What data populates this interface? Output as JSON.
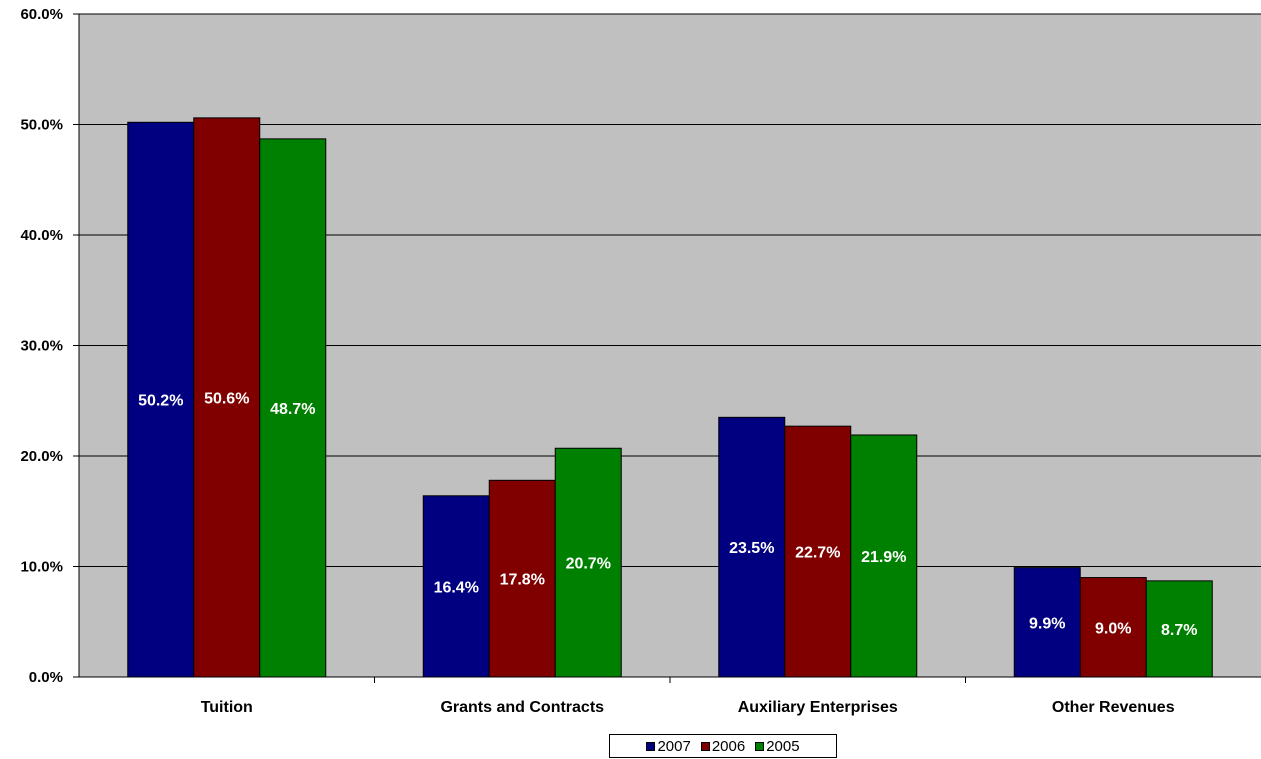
{
  "chart_data": {
    "type": "bar",
    "categories": [
      "Tuition",
      "Grants and Contracts",
      "Auxiliary Enterprises",
      "Other Revenues"
    ],
    "series": [
      {
        "name": "2007",
        "color": "#000080",
        "values": [
          50.2,
          16.4,
          23.5,
          9.9
        ],
        "labels": [
          "50.2%",
          "16.4%",
          "23.5%",
          "9.9%"
        ]
      },
      {
        "name": "2006",
        "color": "#800000",
        "values": [
          50.6,
          17.8,
          22.7,
          9.0
        ],
        "labels": [
          "50.6%",
          "17.8%",
          "22.7%",
          "9.0%"
        ]
      },
      {
        "name": "2005",
        "color": "#008000",
        "values": [
          48.7,
          20.7,
          21.9,
          8.7
        ],
        "labels": [
          "48.7%",
          "20.7%",
          "21.9%",
          "8.7%"
        ]
      }
    ],
    "ylim": [
      0,
      60
    ],
    "yticks": [
      0,
      10,
      20,
      30,
      40,
      50,
      60
    ],
    "ytick_labels": [
      "0.0%",
      "10.0%",
      "20.0%",
      "30.0%",
      "40.0%",
      "50.0%",
      "60.0%"
    ],
    "title": "",
    "xlabel": "",
    "ylabel": "",
    "grid": true,
    "plot_background": "#c0c0c0",
    "legend_position": "bottom-center"
  }
}
